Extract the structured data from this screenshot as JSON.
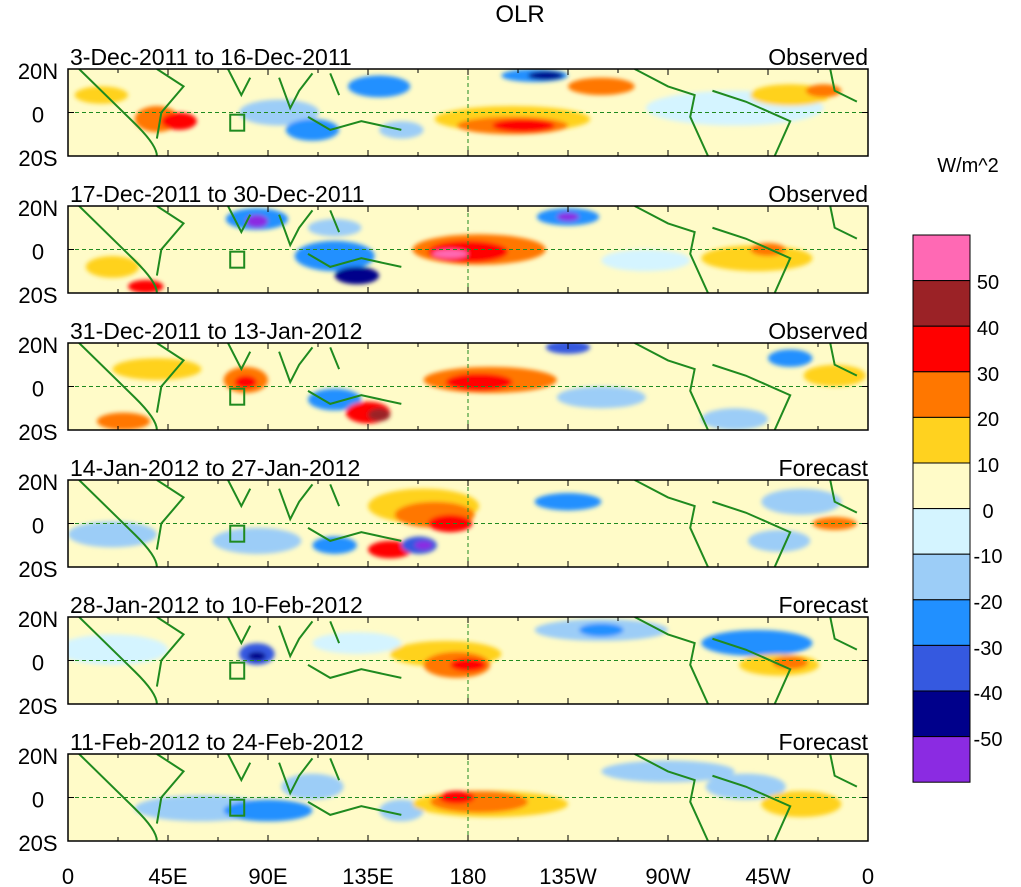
{
  "title": "OLR",
  "colorbar_unit": "W/m^2",
  "lat_labels": [
    "20N",
    "0",
    "20S"
  ],
  "lon_labels": [
    "0",
    "45E",
    "90E",
    "135E",
    "180",
    "135W",
    "90W",
    "45W",
    "0"
  ],
  "panels": [
    {
      "period": "3-Dec-2011 to 16-Dec-2011",
      "kind": "Observed"
    },
    {
      "period": "17-Dec-2011 to 30-Dec-2011",
      "kind": "Observed"
    },
    {
      "period": "31-Dec-2011 to 13-Jan-2012",
      "kind": "Observed"
    },
    {
      "period": "14-Jan-2012 to 27-Jan-2012",
      "kind": "Forecast"
    },
    {
      "period": "28-Jan-2012 to 10-Feb-2012",
      "kind": "Forecast"
    },
    {
      "period": "11-Feb-2012 to 24-Feb-2012",
      "kind": "Forecast"
    }
  ],
  "colorbar": {
    "labels": [
      "50",
      "40",
      "30",
      "20",
      "10",
      "0",
      "-10",
      "-20",
      "-30",
      "-40",
      "-50"
    ],
    "colors": [
      "#ff69b4",
      "#9b2226",
      "#ff0000",
      "#ff7700",
      "#ffd21f",
      "#fffbc8",
      "#d4f4ff",
      "#9ccdf7",
      "#2190ff",
      "#3559e0",
      "#00008b",
      "#8b2be2"
    ]
  },
  "palette": {
    "land": "#1f8a1f",
    "zero": "#fffbc8",
    "border": "#1f8a1f",
    "pos1": "#ffd21f",
    "pos2": "#ff7700",
    "pos3": "#ff0000",
    "pos4": "#9b2226",
    "pos5": "#ff69b4",
    "neg1": "#d4f4ff",
    "neg2": "#9ccdf7",
    "neg3": "#2190ff",
    "neg4": "#3559e0",
    "neg5": "#00008b",
    "neg6": "#8b2be2"
  }
}
